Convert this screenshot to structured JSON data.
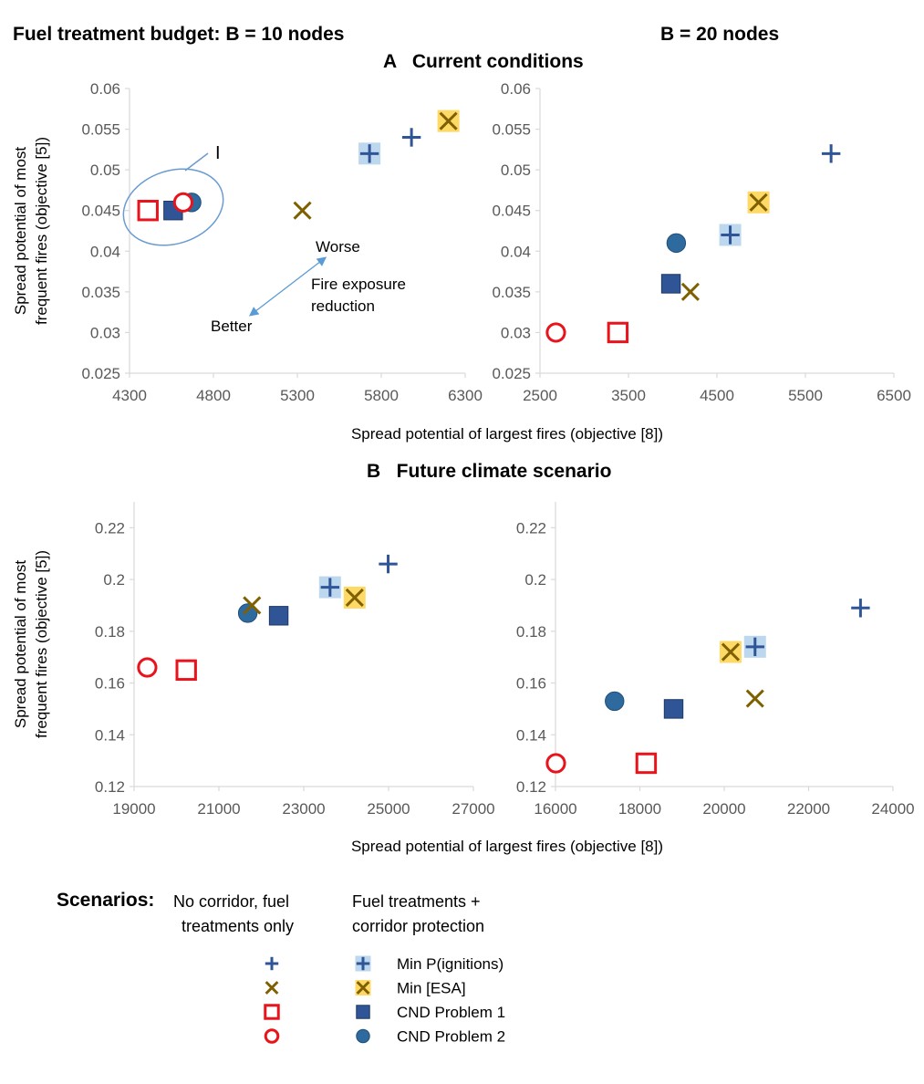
{
  "header": {
    "budget10": "Fuel treatment budget:  B = 10 nodes",
    "budget20": "B = 20 nodes",
    "panelA": "A   Current conditions",
    "panelB": "B   Future climate scenario"
  },
  "axis_labels": {
    "xlabel": "Spread potential of largest fires (objective [8])",
    "ylabel_line1": "Spread potential of most",
    "ylabel_line2": "frequent fires (objective [5])"
  },
  "annotations": {
    "circle_label": "I",
    "worse": "Worse",
    "better": "Better",
    "fire1": "Fire exposure",
    "fire2": "reduction"
  },
  "legend": {
    "heading": "Scenarios:",
    "col1_line1": "No corridor, fuel",
    "col1_line2": "treatments only",
    "col2_line1": "Fuel treatments +",
    "col2_line2": "corridor protection",
    "rows": [
      {
        "label": "Min P(ignitions)",
        "symbol": "plus",
        "corridor_symbol": "plus_bg"
      },
      {
        "label": "Min [ESA]",
        "symbol": "x",
        "corridor_symbol": "x_bg"
      },
      {
        "label": "CND Problem 1",
        "symbol": "square_open",
        "corridor_symbol": "square_filled"
      },
      {
        "label": "CND Problem 2",
        "symbol": "circle_open",
        "corridor_symbol": "circle_filled"
      }
    ]
  },
  "colors": {
    "blue": "#2F5597",
    "olive": "#7F6000",
    "red": "#E8131B",
    "light_blue_bg": "#BDD7EE",
    "yellow_bg": "#FFD966",
    "circle_fill": "#2E6A9E",
    "ellipse": "#6A9BD1",
    "axis": "#D9D9D9",
    "text": "#595959"
  },
  "chart_data": [
    {
      "id": "A10",
      "type": "scatter",
      "title": "Current conditions, B = 10 nodes",
      "xlim": [
        4300,
        6300
      ],
      "ylim": [
        0.025,
        0.06
      ],
      "xticks": [
        "4300",
        "4800",
        "5300",
        "5800",
        "6300"
      ],
      "yticks": [
        "0.025",
        "0.03",
        "0.035",
        "0.04",
        "0.045",
        "0.05",
        "0.055",
        "0.06"
      ],
      "points": [
        {
          "series": "Min P(ignitions)",
          "corridor": false,
          "x": 5980,
          "y": 0.054
        },
        {
          "series": "Min P(ignitions)",
          "corridor": true,
          "x": 5730,
          "y": 0.052
        },
        {
          "series": "Min [ESA]",
          "corridor": false,
          "x": 5330,
          "y": 0.045
        },
        {
          "series": "Min [ESA]",
          "corridor": true,
          "x": 6200,
          "y": 0.056
        },
        {
          "series": "CND Problem 1",
          "corridor": false,
          "x": 4410,
          "y": 0.045
        },
        {
          "series": "CND Problem 1",
          "corridor": true,
          "x": 4560,
          "y": 0.045
        },
        {
          "series": "CND Problem 2",
          "corridor": false,
          "x": 4620,
          "y": 0.046
        },
        {
          "series": "CND Problem 2",
          "corridor": true,
          "x": 4670,
          "y": 0.046
        }
      ]
    },
    {
      "id": "A20",
      "type": "scatter",
      "title": "Current conditions, B = 20 nodes",
      "xlim": [
        2500,
        6500
      ],
      "ylim": [
        0.025,
        0.06
      ],
      "xticks": [
        "2500",
        "3500",
        "4500",
        "5500",
        "6500"
      ],
      "yticks": [
        "0.025",
        "0.03",
        "0.035",
        "0.04",
        "0.045",
        "0.05",
        "0.055",
        "0.06"
      ],
      "points": [
        {
          "series": "Min P(ignitions)",
          "corridor": false,
          "x": 5790,
          "y": 0.052
        },
        {
          "series": "Min P(ignitions)",
          "corridor": true,
          "x": 4650,
          "y": 0.042
        },
        {
          "series": "Min [ESA]",
          "corridor": false,
          "x": 4200,
          "y": 0.035
        },
        {
          "series": "Min [ESA]",
          "corridor": true,
          "x": 4970,
          "y": 0.046
        },
        {
          "series": "CND Problem 1",
          "corridor": false,
          "x": 3380,
          "y": 0.03
        },
        {
          "series": "CND Problem 1",
          "corridor": true,
          "x": 3980,
          "y": 0.036
        },
        {
          "series": "CND Problem 2",
          "corridor": false,
          "x": 2680,
          "y": 0.03
        },
        {
          "series": "CND Problem 2",
          "corridor": true,
          "x": 4040,
          "y": 0.041
        }
      ]
    },
    {
      "id": "B10",
      "type": "scatter",
      "title": "Future climate scenario, B = 10 nodes",
      "xlim": [
        19000,
        27000
      ],
      "ylim": [
        0.12,
        0.23
      ],
      "xticks": [
        "19000",
        "21000",
        "23000",
        "25000",
        "27000"
      ],
      "yticks": [
        "0.12",
        "0.14",
        "0.16",
        "0.18",
        "0.2",
        "0.22"
      ],
      "points": [
        {
          "series": "Min P(ignitions)",
          "corridor": false,
          "x": 24990,
          "y": 0.206
        },
        {
          "series": "Min P(ignitions)",
          "corridor": true,
          "x": 23620,
          "y": 0.197
        },
        {
          "series": "Min [ESA]",
          "corridor": false,
          "x": 21780,
          "y": 0.19
        },
        {
          "series": "Min [ESA]",
          "corridor": true,
          "x": 24200,
          "y": 0.193
        },
        {
          "series": "CND Problem 1",
          "corridor": false,
          "x": 20230,
          "y": 0.165
        },
        {
          "series": "CND Problem 1",
          "corridor": true,
          "x": 22410,
          "y": 0.186
        },
        {
          "series": "CND Problem 2",
          "corridor": false,
          "x": 19310,
          "y": 0.166
        },
        {
          "series": "CND Problem 2",
          "corridor": true,
          "x": 21680,
          "y": 0.187
        }
      ]
    },
    {
      "id": "B20",
      "type": "scatter",
      "title": "Future climate scenario, B = 20 nodes",
      "xlim": [
        16000,
        24000
      ],
      "ylim": [
        0.12,
        0.23
      ],
      "xticks": [
        "16000",
        "18000",
        "20000",
        "22000",
        "24000"
      ],
      "yticks": [
        "0.12",
        "0.14",
        "0.16",
        "0.18",
        "0.2",
        "0.22"
      ],
      "points": [
        {
          "series": "Min P(ignitions)",
          "corridor": false,
          "x": 23230,
          "y": 0.189
        },
        {
          "series": "Min P(ignitions)",
          "corridor": true,
          "x": 20730,
          "y": 0.174
        },
        {
          "series": "Min [ESA]",
          "corridor": false,
          "x": 20730,
          "y": 0.154
        },
        {
          "series": "Min [ESA]",
          "corridor": true,
          "x": 20150,
          "y": 0.172
        },
        {
          "series": "CND Problem 1",
          "corridor": false,
          "x": 18150,
          "y": 0.129
        },
        {
          "series": "CND Problem 1",
          "corridor": true,
          "x": 18800,
          "y": 0.15
        },
        {
          "series": "CND Problem 2",
          "corridor": false,
          "x": 16010,
          "y": 0.129
        },
        {
          "series": "CND Problem 2",
          "corridor": true,
          "x": 17400,
          "y": 0.153
        }
      ]
    }
  ]
}
